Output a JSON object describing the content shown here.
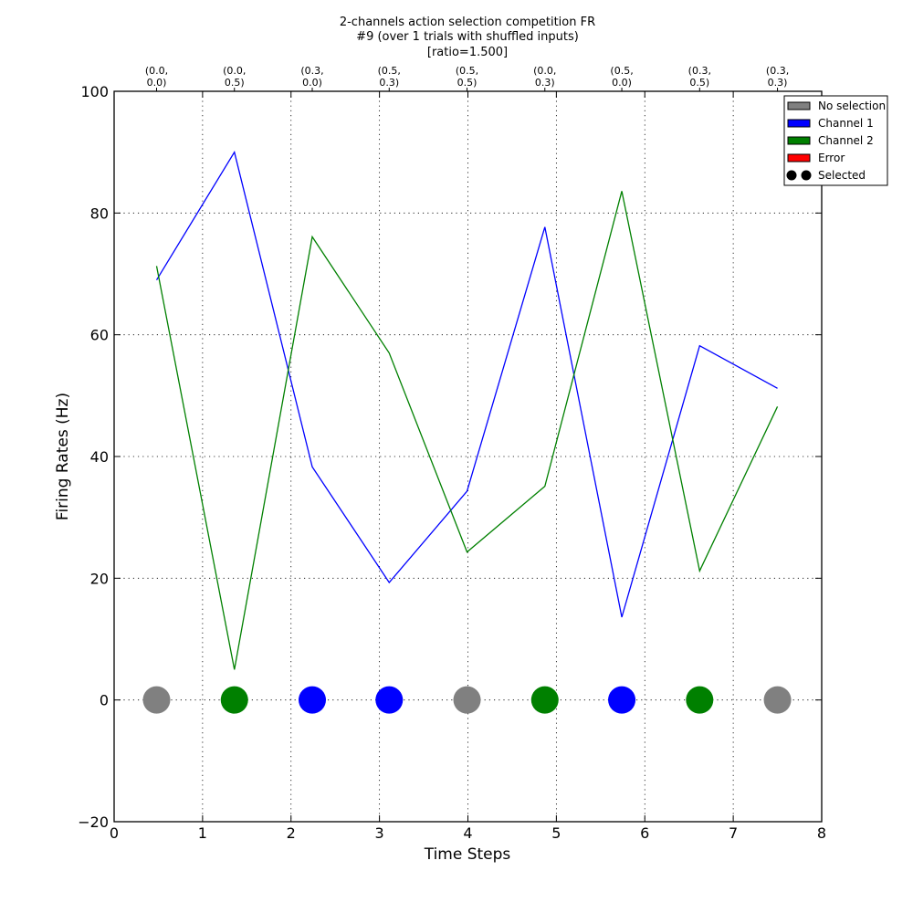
{
  "chart_data": {
    "type": "line",
    "title_lines": [
      "2-channels action selection competition FR",
      "#9 (over 1 trials with shuffled inputs)",
      "[ratio=1.500]"
    ],
    "xlabel": "Time Steps",
    "ylabel": "Firing Rates (Hz)",
    "xlim": [
      0,
      8
    ],
    "ylim": [
      -20,
      100
    ],
    "xticks": [
      0,
      1,
      2,
      3,
      4,
      5,
      6,
      7,
      8
    ],
    "yticks": [
      -20,
      0,
      20,
      40,
      60,
      80,
      100
    ],
    "xtick_labels": [
      "0",
      "1",
      "2",
      "3",
      "4",
      "5",
      "6",
      "7",
      "8"
    ],
    "ytick_labels": [
      "−20",
      "0",
      "20",
      "40",
      "60",
      "80",
      "100"
    ],
    "grid": true,
    "legend_position": "top-right",
    "top_tick_labels": [
      [
        "(0.0,",
        "0.0)"
      ],
      [
        "(0.0,",
        "0.5)"
      ],
      [
        "(0.3,",
        "0.0)"
      ],
      [
        "(0.5,",
        "0.3)"
      ],
      [
        "(0.5,",
        "0.5)"
      ],
      [
        "(0.0,",
        "0.3)"
      ],
      [
        "(0.5,",
        "0.0)"
      ],
      [
        "(0.3,",
        "0.5)"
      ],
      [
        "(0.3,",
        "0.3)"
      ]
    ],
    "x": [
      0.48,
      1.36,
      2.24,
      3.11,
      3.99,
      4.87,
      5.74,
      6.62,
      7.5
    ],
    "series": [
      {
        "name": "Channel 1",
        "color": "#0000ff",
        "values": [
          69.0,
          90.0,
          38.3,
          19.3,
          34.3,
          77.7,
          13.6,
          58.2,
          51.2
        ]
      },
      {
        "name": "Channel 2",
        "color": "#008000",
        "values": [
          71.3,
          5.0,
          76.1,
          57.0,
          24.3,
          35.1,
          83.6,
          21.2,
          48.2
        ]
      }
    ],
    "selection": {
      "y": 0,
      "states": [
        "none",
        "channel2",
        "channel1",
        "channel1",
        "none",
        "channel2",
        "channel1",
        "channel2",
        "none"
      ]
    },
    "legend": [
      {
        "key": "none",
        "label": "No selection",
        "color": "#808080",
        "kind": "patch"
      },
      {
        "key": "channel1",
        "label": "Channel 1",
        "color": "#0000ff",
        "kind": "patch"
      },
      {
        "key": "channel2",
        "label": "Channel 2",
        "color": "#008000",
        "kind": "patch"
      },
      {
        "key": "error",
        "label": "Error",
        "color": "#ff0000",
        "kind": "patch"
      },
      {
        "key": "selected",
        "label": "Selected",
        "color": "#000000",
        "kind": "markers"
      }
    ]
  }
}
